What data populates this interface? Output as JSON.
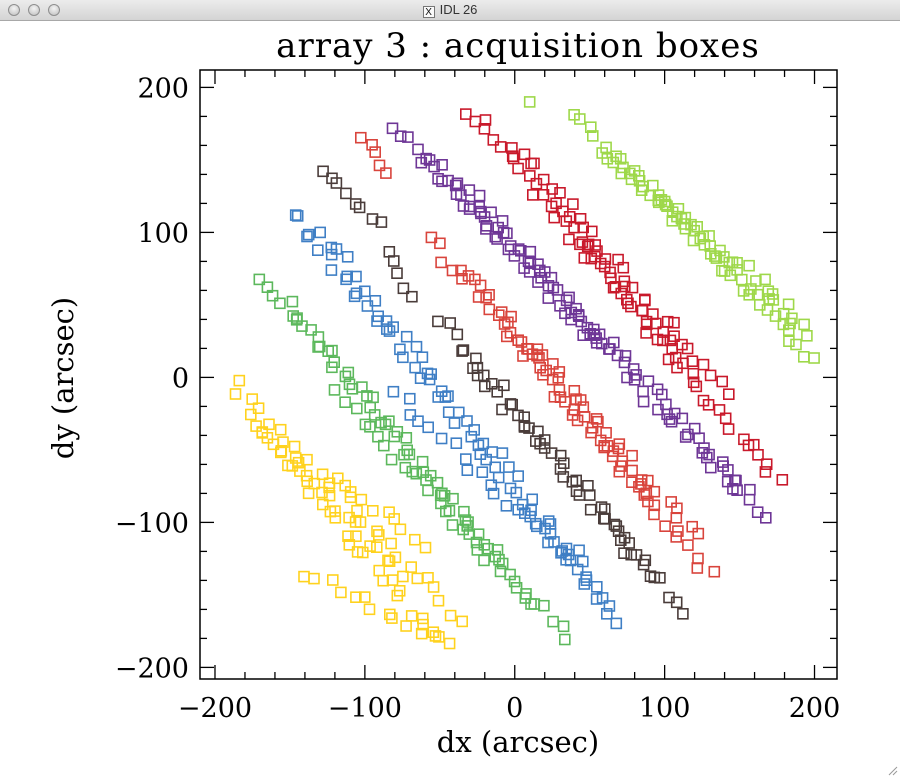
{
  "window": {
    "title": "IDL 26",
    "x_icon": "X"
  },
  "chart_data": {
    "type": "scatter",
    "title": "array 3 : acquisition boxes",
    "xlabel": "dx (arcsec)",
    "ylabel": "dy (arcsec)",
    "xlim": [
      -210,
      215
    ],
    "ylim": [
      -208,
      212
    ],
    "xticks": [
      -200,
      -100,
      0,
      100,
      200
    ],
    "xtick_labels": [
      "−200",
      "−100",
      "0",
      "100",
      "200"
    ],
    "yticks": [
      -200,
      -100,
      0,
      100,
      200
    ],
    "ytick_labels": [
      "−200",
      "−100",
      "0",
      "100",
      "200"
    ],
    "minor_step": 20,
    "marker": "open-square",
    "series": [
      {
        "color": "#FFD21E",
        "segments": [
          {
            "x0": -188,
            "y0": -5,
            "x1": -35,
            "y1": -168,
            "count": 26,
            "dx": 5,
            "dy": 4
          },
          {
            "x0": -178,
            "y0": -25,
            "x1": -55,
            "y1": -180,
            "count": 26,
            "dx": 4,
            "dy": 5
          },
          {
            "x0": -165,
            "y0": -40,
            "x1": -78,
            "y1": -135,
            "count": 18,
            "dx": 4,
            "dy": 4
          },
          {
            "x0": -140,
            "y0": -135,
            "x1": -40,
            "y1": -185,
            "count": 14,
            "dx": 4,
            "dy": 3
          },
          {
            "x0": -120,
            "y0": -70,
            "x1": -60,
            "y1": -115,
            "count": 10,
            "dx": 3,
            "dy": 3
          }
        ]
      },
      {
        "color": "#5CB85C",
        "segments": [
          {
            "x0": -170,
            "y0": 70,
            "x1": -10,
            "y1": -125,
            "count": 30,
            "dx": 4,
            "dy": 4
          },
          {
            "x0": -150,
            "y0": 50,
            "x1": 10,
            "y1": -155,
            "count": 30,
            "dx": 4,
            "dy": 4
          },
          {
            "x0": -120,
            "y0": -10,
            "x1": 35,
            "y1": -180,
            "count": 28,
            "dx": 4,
            "dy": 4
          }
        ]
      },
      {
        "color": "#3F7FC5",
        "segments": [
          {
            "x0": -150,
            "y0": 115,
            "x1": 70,
            "y1": -170,
            "count": 44,
            "dx": 4,
            "dy": 4
          },
          {
            "x0": -130,
            "y0": 100,
            "x1": 60,
            "y1": -150,
            "count": 38,
            "dx": 4,
            "dy": 4
          },
          {
            "x0": -80,
            "y0": -10,
            "x1": 40,
            "y1": -130,
            "count": 20,
            "dx": 4,
            "dy": 4
          }
        ]
      },
      {
        "color": "#4A3C3A",
        "segments": [
          {
            "x0": -130,
            "y0": 145,
            "x1": -90,
            "y1": 105,
            "count": 8,
            "dx": 3,
            "dy": 3
          },
          {
            "x0": -85,
            "y0": 85,
            "x1": -70,
            "y1": 55,
            "count": 5,
            "dx": 3,
            "dy": 3
          },
          {
            "x0": -50,
            "y0": 40,
            "x1": 110,
            "y1": -160,
            "count": 34,
            "dx": 4,
            "dy": 4
          },
          {
            "x0": -30,
            "y0": 10,
            "x1": 95,
            "y1": -135,
            "count": 26,
            "dx": 4,
            "dy": 4
          }
        ]
      },
      {
        "color": "#D9443C",
        "segments": [
          {
            "x0": -100,
            "y0": 165,
            "x1": -85,
            "y1": 140,
            "count": 5,
            "dx": 3,
            "dy": 3
          },
          {
            "x0": -55,
            "y0": 95,
            "x1": 130,
            "y1": -135,
            "count": 40,
            "dx": 4,
            "dy": 4
          },
          {
            "x0": -30,
            "y0": 70,
            "x1": 120,
            "y1": -110,
            "count": 32,
            "dx": 4,
            "dy": 4
          },
          {
            "x0": 0,
            "y0": 30,
            "x1": 90,
            "y1": -85,
            "count": 18,
            "dx": 4,
            "dy": 4
          }
        ]
      },
      {
        "color": "#6E3696",
        "segments": [
          {
            "x0": -80,
            "y0": 175,
            "x1": 170,
            "y1": -95,
            "count": 52,
            "dx": 4,
            "dy": 4
          },
          {
            "x0": -60,
            "y0": 150,
            "x1": 150,
            "y1": -80,
            "count": 46,
            "dx": 4,
            "dy": 4
          },
          {
            "x0": -30,
            "y0": 130,
            "x1": 60,
            "y1": 20,
            "count": 18,
            "dx": 4,
            "dy": 4
          }
        ]
      },
      {
        "color": "#C9192B",
        "segments": [
          {
            "x0": -30,
            "y0": 185,
            "x1": 175,
            "y1": -70,
            "count": 50,
            "dx": 4,
            "dy": 4
          },
          {
            "x0": 0,
            "y0": 160,
            "x1": 140,
            "y1": -10,
            "count": 32,
            "dx": 4,
            "dy": 4
          },
          {
            "x0": 30,
            "y0": 110,
            "x1": 110,
            "y1": 10,
            "count": 18,
            "dx": 4,
            "dy": 4
          }
        ]
      },
      {
        "color": "#9ED84A",
        "segments": [
          {
            "x0": 40,
            "y0": 180,
            "x1": 200,
            "y1": 10,
            "count": 34,
            "dx": 4,
            "dy": 4
          },
          {
            "x0": 60,
            "y0": 155,
            "x1": 195,
            "y1": 30,
            "count": 30,
            "dx": 4,
            "dy": 4
          },
          {
            "x0": 80,
            "y0": 140,
            "x1": 180,
            "y1": 50,
            "count": 20,
            "dx": 4,
            "dy": 4
          },
          {
            "x0": 10,
            "y0": 190,
            "x1": 10,
            "y1": 190,
            "count": 1,
            "dx": 0,
            "dy": 0
          }
        ]
      }
    ]
  }
}
